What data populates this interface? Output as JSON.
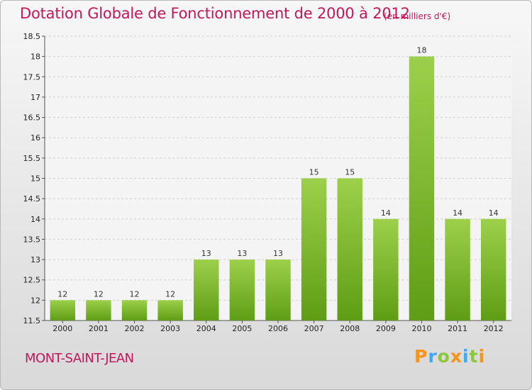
{
  "title": "Dotation Globale de Fonctionnement de 2000 à 2012",
  "unit_note": "(en milliers d'€)",
  "commune": "MONT-SAINT-JEAN",
  "logo": {
    "letters": [
      {
        "ch": "P",
        "color": "#f7941d"
      },
      {
        "ch": "r",
        "color": "#3fa9f5"
      },
      {
        "ch": "o",
        "color": "#8dc63f"
      },
      {
        "ch": "x",
        "color": "#f7941d"
      },
      {
        "ch": "i",
        "color": "#3fa9f5"
      },
      {
        "ch": "t",
        "color": "#8dc63f"
      },
      {
        "ch": "i",
        "color": "#f7941d"
      }
    ]
  },
  "colors": {
    "title": "#c2185b",
    "bar_light": "#9dd04a",
    "bar_dark": "#5e9d15"
  },
  "chart_data": {
    "type": "bar",
    "categories": [
      "2000",
      "2001",
      "2002",
      "2003",
      "2004",
      "2005",
      "2006",
      "2007",
      "2008",
      "2009",
      "2010",
      "2011",
      "2012"
    ],
    "values": [
      12,
      12,
      12,
      12,
      13,
      13,
      13,
      15,
      15,
      14,
      18,
      14,
      14
    ],
    "ylim": [
      11.5,
      18.5
    ],
    "yticks": [
      11.5,
      12,
      12.5,
      13,
      13.5,
      14,
      14.5,
      15,
      15.5,
      16,
      16.5,
      17,
      17.5,
      18,
      18.5
    ],
    "grid": true
  }
}
